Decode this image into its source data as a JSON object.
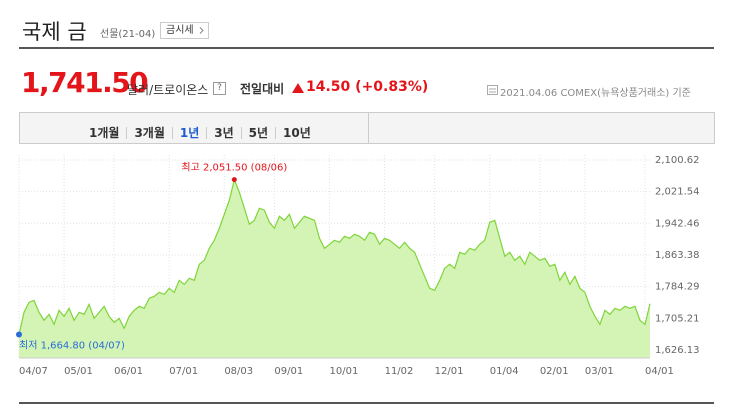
{
  "header": {
    "title": "국제 금",
    "subtitle": "선물(21-04)",
    "button": "금시세"
  },
  "price": {
    "value": "1,741.50",
    "unit": "달러/트로이온스",
    "help": "?",
    "change_label": "전일대비",
    "change": "14.50",
    "change_pct": "(+0.83%)",
    "date": "2021.04.06",
    "source": "COMEX(뉴욕상품거래소) 기준"
  },
  "tabs": [
    {
      "label": "1개월",
      "selected": false
    },
    {
      "label": "3개월",
      "selected": false
    },
    {
      "label": "1년",
      "selected": true
    },
    {
      "label": "3년",
      "selected": false
    },
    {
      "label": "5년",
      "selected": false
    },
    {
      "label": "10년",
      "selected": false
    }
  ],
  "chart_data": {
    "type": "area",
    "color": "#7fd43a",
    "fill": "#d3f4b4",
    "grid": true,
    "high_label": "최고 2,051.50 (08/06)",
    "low_label": "최저 1,664.80 (04/07)",
    "categories": [
      "04/07",
      null,
      null,
      null,
      null,
      null,
      null,
      null,
      null,
      "05/01",
      null,
      null,
      null,
      null,
      null,
      null,
      null,
      null,
      null,
      "06/01",
      null,
      null,
      null,
      null,
      null,
      null,
      null,
      null,
      null,
      null,
      "07/01",
      null,
      null,
      null,
      null,
      null,
      null,
      null,
      null,
      null,
      null,
      "08/03",
      null,
      null,
      null,
      null,
      null,
      null,
      null,
      null,
      null,
      "09/01",
      null,
      null,
      null,
      null,
      null,
      null,
      null,
      null,
      null,
      null,
      "10/01",
      null,
      null,
      null,
      null,
      null,
      null,
      null,
      null,
      null,
      null,
      "11/02",
      null,
      null,
      null,
      null,
      null,
      null,
      null,
      null,
      null,
      "12/01",
      null,
      null,
      null,
      null,
      null,
      null,
      null,
      null,
      null,
      null,
      "01/04",
      null,
      null,
      null,
      null,
      null,
      null,
      null,
      null,
      null,
      "02/01",
      null,
      null,
      null,
      null,
      null,
      null,
      null,
      null,
      "03/01",
      null,
      null,
      null,
      null,
      null,
      null,
      null,
      null,
      null,
      null,
      null,
      "04/01",
      null
    ],
    "values": [
      1664.8,
      1720,
      1745,
      1750,
      1720,
      1700,
      1715,
      1690,
      1725,
      1710,
      1730,
      1700,
      1720,
      1715,
      1740,
      1705,
      1720,
      1735,
      1710,
      1695,
      1705,
      1680,
      1710,
      1725,
      1735,
      1730,
      1755,
      1760,
      1770,
      1765,
      1780,
      1770,
      1800,
      1790,
      1805,
      1800,
      1840,
      1850,
      1880,
      1900,
      1930,
      1965,
      2000,
      2051.5,
      2020,
      1980,
      1940,
      1950,
      1980,
      1975,
      1945,
      1930,
      1960,
      1950,
      1965,
      1930,
      1945,
      1960,
      1955,
      1950,
      1905,
      1880,
      1890,
      1900,
      1895,
      1910,
      1905,
      1915,
      1910,
      1900,
      1920,
      1915,
      1890,
      1905,
      1900,
      1890,
      1880,
      1895,
      1880,
      1870,
      1840,
      1810,
      1780,
      1775,
      1800,
      1830,
      1840,
      1830,
      1870,
      1865,
      1880,
      1875,
      1890,
      1900,
      1945,
      1950,
      1905,
      1860,
      1870,
      1850,
      1860,
      1840,
      1870,
      1860,
      1850,
      1855,
      1835,
      1840,
      1800,
      1820,
      1790,
      1810,
      1780,
      1770,
      1735,
      1710,
      1690,
      1725,
      1715,
      1730,
      1725,
      1735,
      1730,
      1735,
      1700,
      1690,
      1741.5
    ],
    "ylim": [
      1606,
      2113
    ],
    "yticks": [
      {
        "value": 1626.13,
        "label": "1,626.13"
      },
      {
        "value": 1705.21,
        "label": "1,705.21"
      },
      {
        "value": 1784.29,
        "label": "1,784.29"
      },
      {
        "value": 1863.38,
        "label": "1,863.38"
      },
      {
        "value": 1942.46,
        "label": "1,942.46"
      },
      {
        "value": 2021.54,
        "label": "2,021.54"
      },
      {
        "value": 2100.62,
        "label": "2,100.62"
      }
    ]
  }
}
